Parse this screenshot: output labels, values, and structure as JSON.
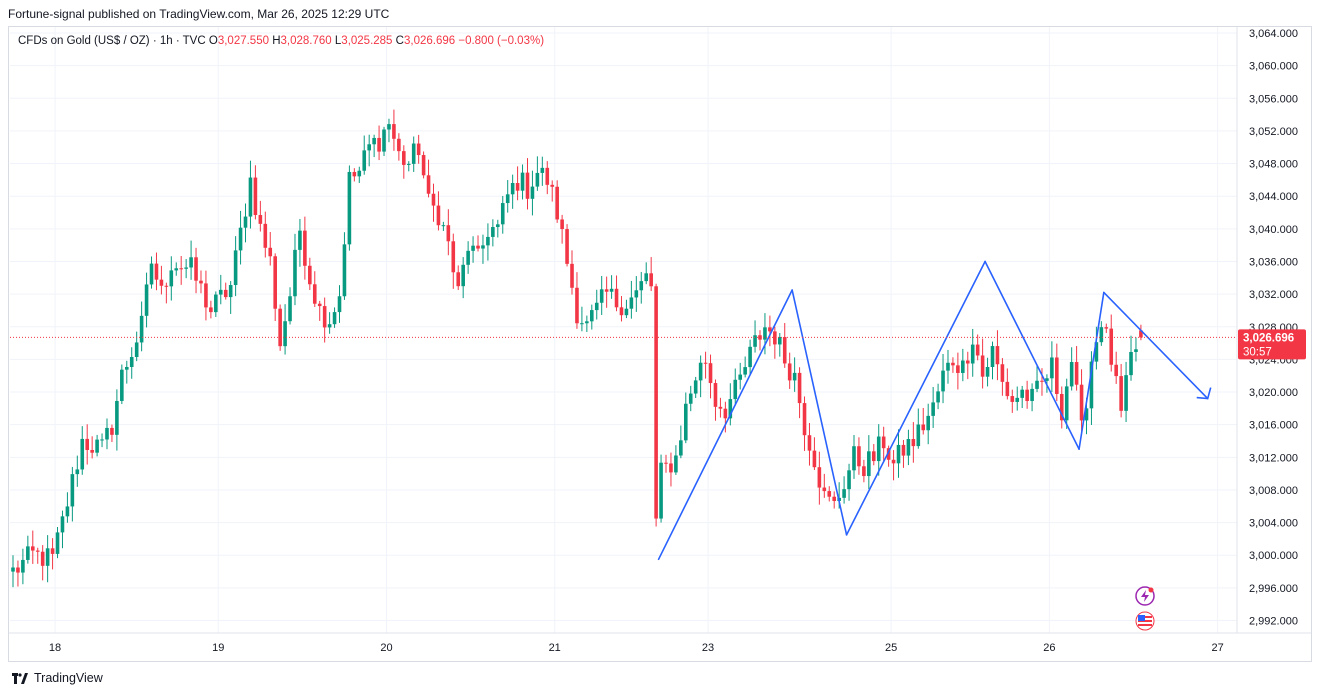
{
  "header": {
    "publisher": "Fortune-signal published on TradingView.com, Mar 26, 2025 12:29 UTC"
  },
  "legend": {
    "symbol": "CFDs on Gold (US$ / OZ) · 1h · TVC",
    "open_label": "O",
    "open": "3,027.550",
    "high_label": "H",
    "high": "3,028.760",
    "low_label": "L",
    "low": "3,025.285",
    "close_label": "C",
    "close": "3,026.696",
    "change": "−0.800 (−0.03%)"
  },
  "price_badge": {
    "price": "3,026.696",
    "countdown": "30:57"
  },
  "footer": {
    "brand": "TradingView"
  },
  "colors": {
    "up": "#089981",
    "down": "#f23645",
    "pattern": "#2962ff",
    "grid": "#f0f3fa",
    "text": "#131722"
  },
  "icons": {
    "flash": "flash-icon",
    "flag": "us-flag-icon"
  },
  "chart_data": {
    "type": "candlestick",
    "title": "CFDs on Gold (US$ / OZ) · 1h · TVC",
    "xlabel": "",
    "ylabel": "",
    "ylim": [
      2989,
      3064
    ],
    "y_ticks": [
      "3,064.000",
      "3,060.000",
      "3,056.000",
      "3,052.000",
      "3,048.000",
      "3,044.000",
      "3,040.000",
      "3,036.000",
      "3,032.000",
      "3,028.000",
      "3,024.000",
      "3,020.000",
      "3,016.000",
      "3,012.000",
      "3,008.000",
      "3,004.000",
      "3,000.000",
      "2,996.000",
      "2,992.000"
    ],
    "y_tick_values": [
      3064,
      3060,
      3056,
      3052,
      3048,
      3044,
      3040,
      3036,
      3032,
      3028,
      3024,
      3020,
      3016,
      3012,
      3008,
      3004,
      3000,
      2996,
      2992
    ],
    "x_ticks": [
      {
        "label": "18",
        "bar": 8.5
      },
      {
        "label": "19",
        "bar": 41.5
      },
      {
        "label": "20",
        "bar": 75.5
      },
      {
        "label": "21",
        "bar": 109.5
      },
      {
        "label": "23",
        "bar": 140.5
      },
      {
        "label": "25",
        "bar": 177.5
      },
      {
        "label": "26",
        "bar": 209.5
      },
      {
        "label": "27",
        "bar": 243.5
      }
    ],
    "bar_count": 245,
    "last_price": 3026.696,
    "keypoints": [
      [
        0,
        2998
      ],
      [
        4,
        3000
      ],
      [
        8,
        2999.5
      ],
      [
        10,
        3004
      ],
      [
        14,
        3014
      ],
      [
        18,
        3013
      ],
      [
        20,
        3016
      ],
      [
        22,
        3022
      ],
      [
        24,
        3025
      ],
      [
        26,
        3028
      ],
      [
        28,
        3036
      ],
      [
        30,
        3032
      ],
      [
        32,
        3036
      ],
      [
        36,
        3035
      ],
      [
        40,
        3030
      ],
      [
        44,
        3033
      ],
      [
        48,
        3046
      ],
      [
        50,
        3040
      ],
      [
        52,
        3036
      ],
      [
        54,
        3026
      ],
      [
        56,
        3032
      ],
      [
        58,
        3040
      ],
      [
        60,
        3034
      ],
      [
        62,
        3030
      ],
      [
        64,
        3029
      ],
      [
        66,
        3032
      ],
      [
        68,
        3046
      ],
      [
        70,
        3047
      ],
      [
        72,
        3050
      ],
      [
        74,
        3051
      ],
      [
        76,
        3053
      ],
      [
        78,
        3049
      ],
      [
        80,
        3048
      ],
      [
        82,
        3050
      ],
      [
        84,
        3043
      ],
      [
        86,
        3042
      ],
      [
        88,
        3038
      ],
      [
        90,
        3032
      ],
      [
        92,
        3038
      ],
      [
        94,
        3036
      ],
      [
        96,
        3040
      ],
      [
        98,
        3040
      ],
      [
        100,
        3044
      ],
      [
        102,
        3046
      ],
      [
        104,
        3045
      ],
      [
        106,
        3047
      ],
      [
        108,
        3046
      ],
      [
        110,
        3042
      ],
      [
        112,
        3036
      ],
      [
        114,
        3030
      ],
      [
        116,
        3028
      ],
      [
        118,
        3030
      ],
      [
        120,
        3032
      ],
      [
        122,
        3031
      ],
      [
        124,
        3031
      ],
      [
        126,
        3032
      ],
      [
        128,
        3034
      ],
      [
        129,
        3033
      ],
      [
        130,
        3004
      ],
      [
        131,
        3010
      ],
      [
        134,
        3012
      ],
      [
        136,
        3018
      ],
      [
        138,
        3022
      ],
      [
        140,
        3024
      ],
      [
        142,
        3019
      ],
      [
        144,
        3018
      ],
      [
        146,
        3020
      ],
      [
        148,
        3023
      ],
      [
        150,
        3026
      ],
      [
        152,
        3028
      ],
      [
        154,
        3027
      ],
      [
        156,
        3024
      ],
      [
        158,
        3022
      ],
      [
        160,
        3016
      ],
      [
        162,
        3012
      ],
      [
        164,
        3007
      ],
      [
        166,
        3006
      ],
      [
        168,
        3009
      ],
      [
        170,
        3012
      ],
      [
        172,
        3011
      ],
      [
        174,
        3012
      ],
      [
        176,
        3014
      ],
      [
        178,
        3011
      ],
      [
        180,
        3013
      ],
      [
        182,
        3014
      ],
      [
        184,
        3016
      ],
      [
        186,
        3018
      ],
      [
        188,
        3022
      ],
      [
        190,
        3024
      ],
      [
        192,
        3023
      ],
      [
        194,
        3027
      ],
      [
        196,
        3022
      ],
      [
        198,
        3025
      ],
      [
        200,
        3021
      ],
      [
        202,
        3019
      ],
      [
        204,
        3020
      ],
      [
        206,
        3019
      ],
      [
        208,
        3021
      ],
      [
        210,
        3023
      ],
      [
        212,
        3018
      ],
      [
        214,
        3024
      ],
      [
        216,
        3015
      ],
      [
        218,
        3024
      ],
      [
        220,
        3029
      ],
      [
        222,
        3024
      ],
      [
        224,
        3017
      ],
      [
        226,
        3024
      ],
      [
        228,
        3026.696
      ]
    ],
    "pattern_lines": [
      {
        "name": "",
        "x": [
          130.5,
          157.5
        ],
        "y": [
          2999.5,
          3032.5
        ]
      },
      {
        "name": "",
        "x": [
          157.5,
          168.5
        ],
        "y": [
          3032.5,
          3002.5
        ]
      },
      {
        "name": "",
        "x": [
          168.5,
          196.5
        ],
        "y": [
          3002.5,
          3036
        ]
      },
      {
        "name": "",
        "x": [
          196.5,
          215.5
        ],
        "y": [
          3036,
          3013
        ]
      },
      {
        "name": "",
        "x": [
          215.5,
          220.5
        ],
        "y": [
          3013,
          3032.2
        ]
      },
      {
        "name": "",
        "x": [
          220.5,
          241.5
        ],
        "y": [
          3032.2,
          3019.2
        ]
      }
    ]
  }
}
